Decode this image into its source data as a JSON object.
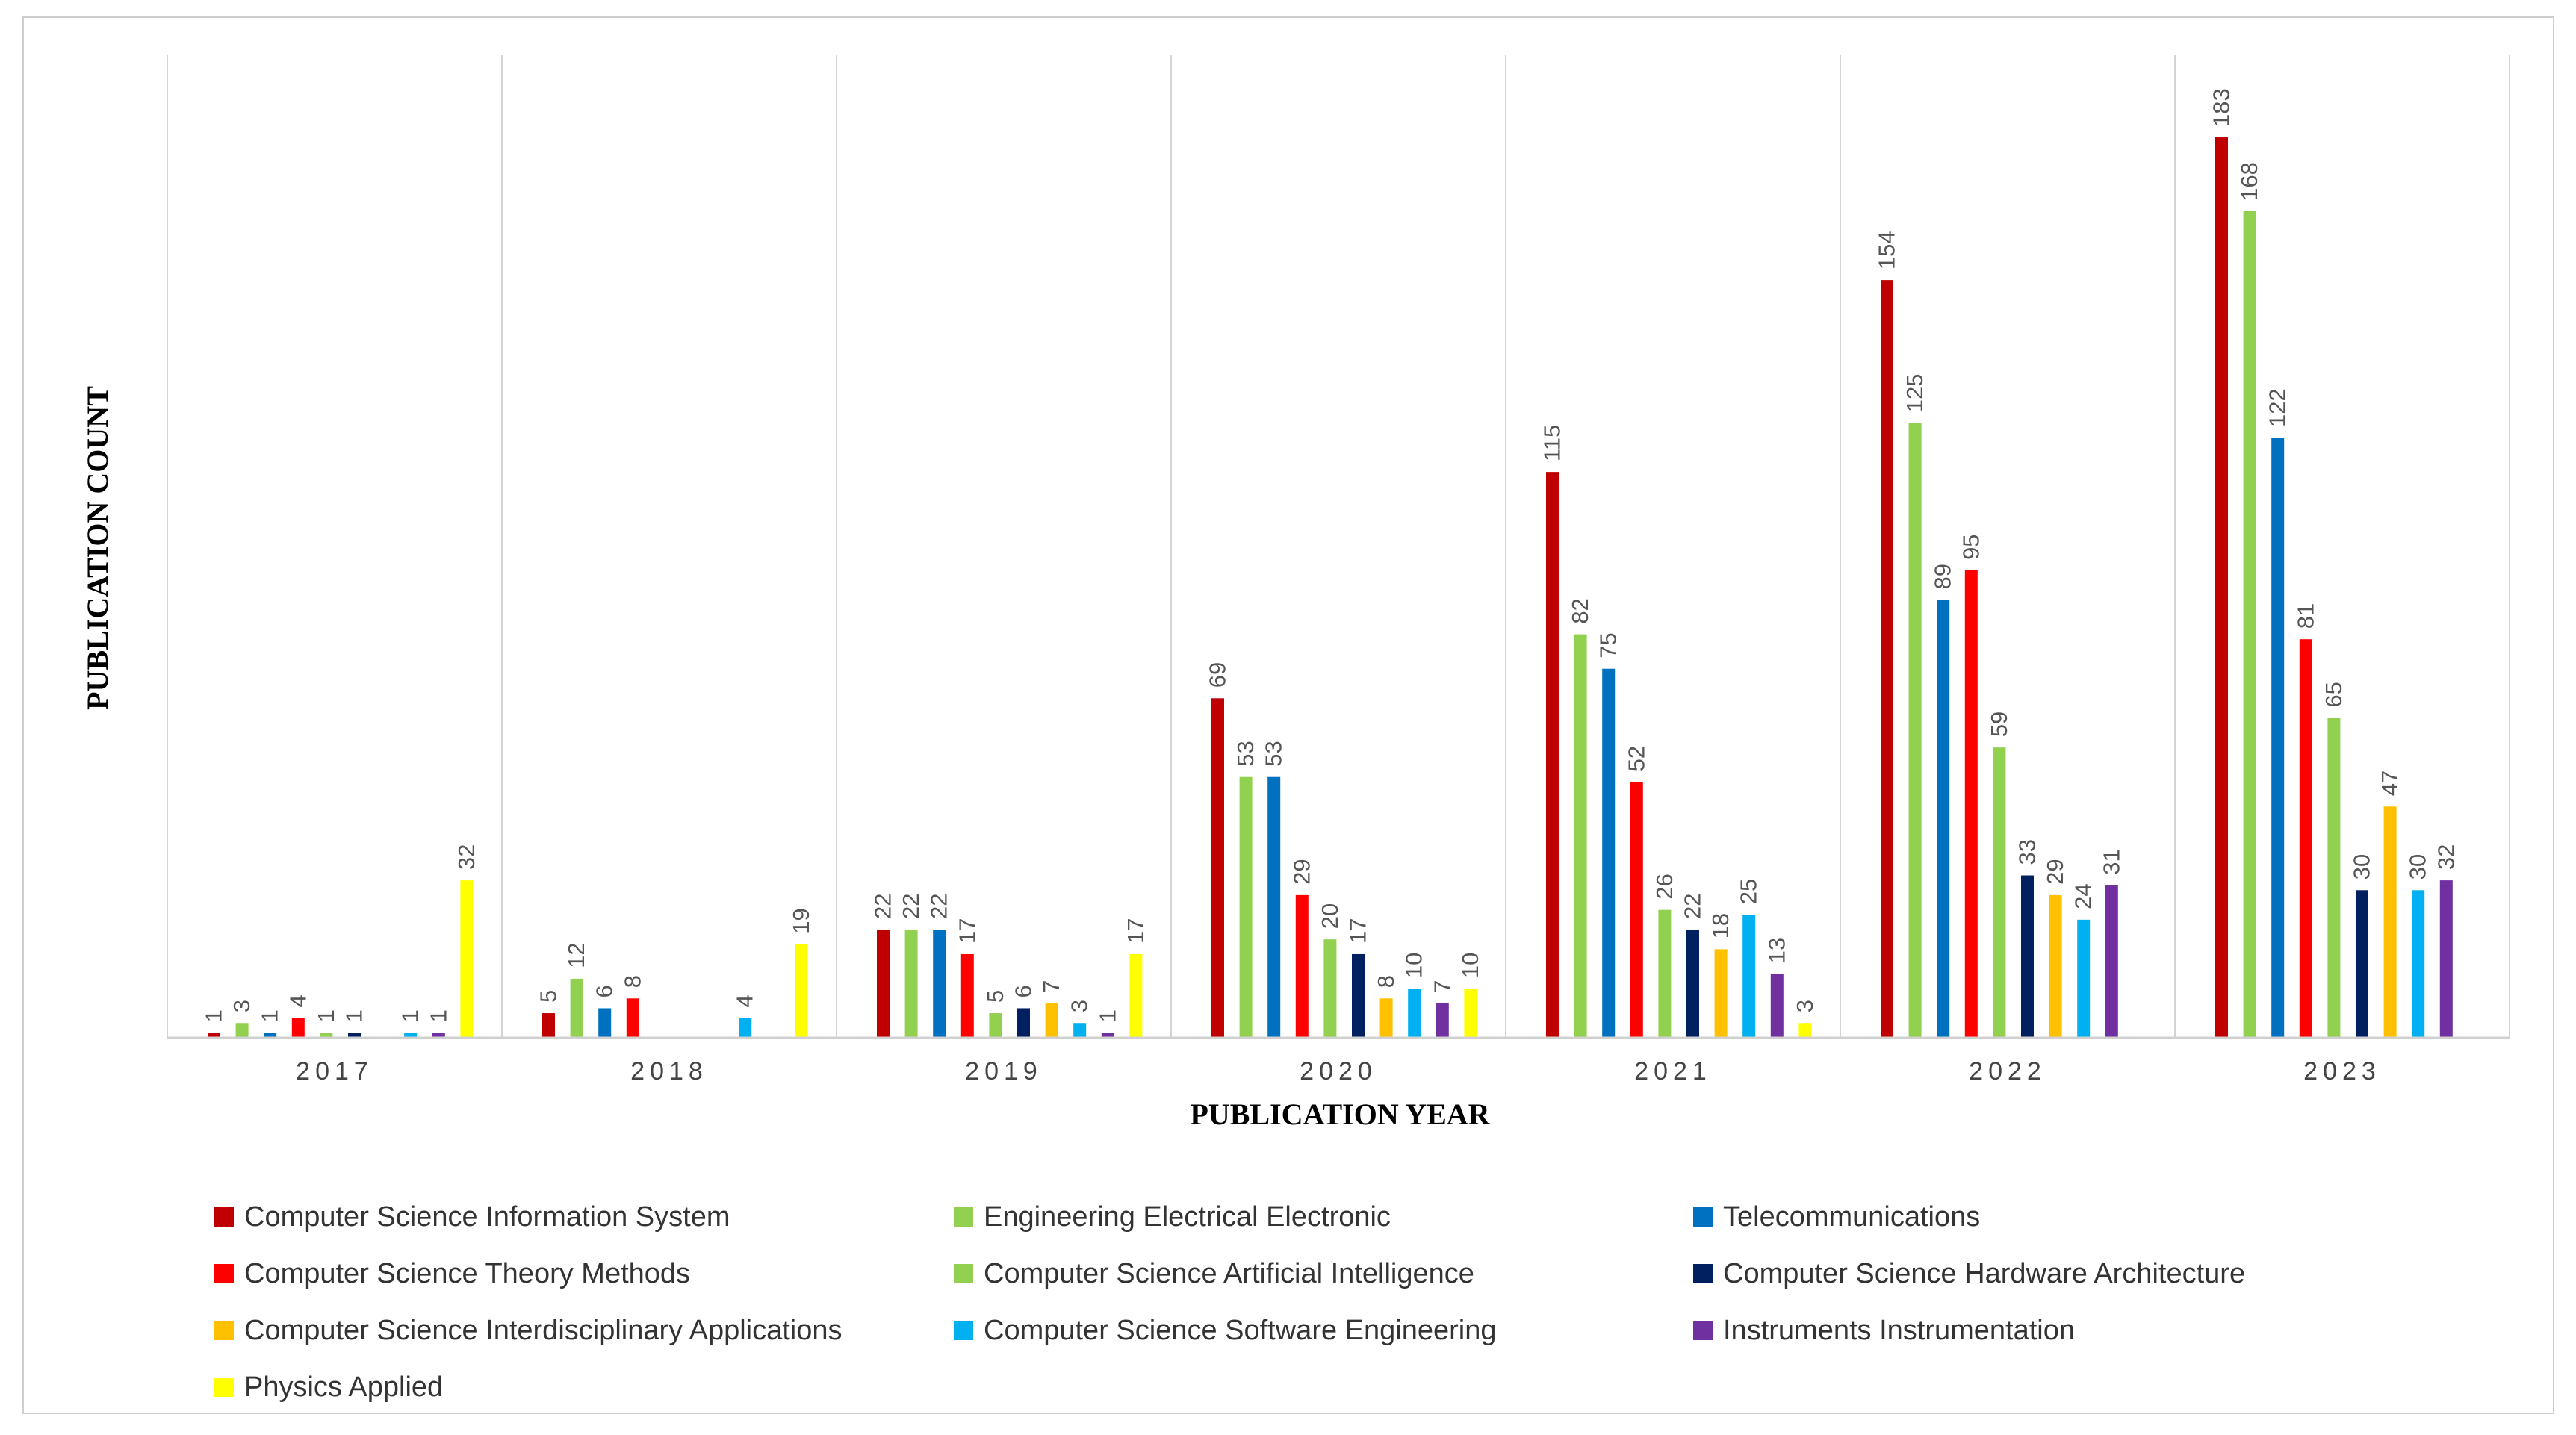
{
  "chart_data": {
    "type": "bar",
    "title": "",
    "xlabel": "PUBLICATION YEAR",
    "ylabel": "PUBLICATION COUNT",
    "ylim": [
      0,
      183
    ],
    "grid": "vertical separators between year groups",
    "legend_position": "bottom",
    "categories": [
      "2017",
      "2018",
      "2019",
      "2020",
      "2021",
      "2022",
      "2023"
    ],
    "series": [
      {
        "name": "Computer Science Information System",
        "color": "#C00000",
        "values": [
          1,
          5,
          22,
          69,
          115,
          154,
          183
        ]
      },
      {
        "name": "Engineering Electrical Electronic",
        "color": "#92D050",
        "values": [
          3,
          12,
          22,
          53,
          82,
          125,
          168
        ]
      },
      {
        "name": "Telecommunications",
        "color": "#0070C0",
        "values": [
          1,
          6,
          22,
          53,
          75,
          89,
          122
        ]
      },
      {
        "name": "Computer Science Theory Methods",
        "color": "#FF0000",
        "values": [
          4,
          8,
          17,
          29,
          52,
          95,
          81
        ]
      },
      {
        "name": "Computer Science Artificial Intelligence",
        "color": "#92D050",
        "values": [
          1,
          null,
          5,
          20,
          26,
          59,
          65
        ]
      },
      {
        "name": "Computer Science Hardware Architecture",
        "color": "#002060",
        "values": [
          1,
          null,
          6,
          17,
          22,
          33,
          30
        ]
      },
      {
        "name": "Computer Science Interdisciplinary Applications",
        "color": "#FFC000",
        "values": [
          null,
          null,
          7,
          8,
          18,
          29,
          47
        ]
      },
      {
        "name": "Computer Science Software Engineering",
        "color": "#00B0F0",
        "values": [
          1,
          4,
          3,
          10,
          25,
          24,
          30
        ]
      },
      {
        "name": "Instruments Instrumentation",
        "color": "#7030A0",
        "values": [
          1,
          null,
          1,
          7,
          13,
          31,
          32
        ]
      },
      {
        "name": "Physics Applied",
        "color": "#FFFF00",
        "values": [
          32,
          19,
          17,
          10,
          3,
          null,
          null
        ]
      }
    ]
  }
}
